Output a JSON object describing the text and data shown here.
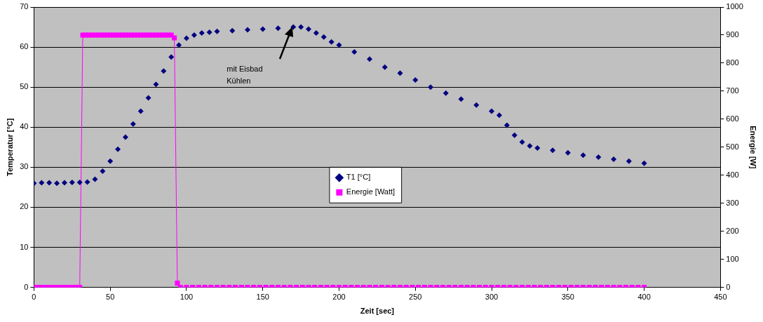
{
  "chart_data": {
    "type": "line",
    "xlabel": "Zeit [sec]",
    "ylabel": "Temperatur [°C]",
    "y2label": "Energie [W]",
    "xlim": [
      0,
      450
    ],
    "xticks": [
      0,
      50,
      100,
      150,
      200,
      250,
      300,
      350,
      400,
      450
    ],
    "ylim": [
      0,
      70
    ],
    "yticks": [
      0,
      10,
      20,
      30,
      40,
      50,
      60,
      70
    ],
    "y2lim": [
      0,
      1000
    ],
    "y2ticks": [
      0,
      100,
      200,
      300,
      400,
      500,
      600,
      700,
      800,
      900,
      1000
    ],
    "grid": "y",
    "legend": "center",
    "annotations": [
      "mit Eisbad\nKühlen"
    ],
    "series": [
      {
        "name": "T1 [°C]",
        "type": "scatter",
        "marker": "diamond",
        "color": "#000080",
        "x": [
          0,
          5,
          10,
          15,
          20,
          25,
          30,
          35,
          40,
          45,
          50,
          55,
          60,
          65,
          70,
          75,
          80,
          85,
          90,
          95,
          100,
          105,
          110,
          115,
          120,
          130,
          140,
          150,
          160,
          170,
          175,
          180,
          185,
          190,
          195,
          200,
          210,
          220,
          230,
          240,
          250,
          260,
          270,
          280,
          290,
          300,
          305,
          310,
          315,
          320,
          325,
          330,
          340,
          350,
          360,
          370,
          380,
          390,
          400
        ],
        "values": [
          26,
          26.1,
          26.1,
          26,
          26.1,
          26.2,
          26.2,
          26.3,
          27,
          29,
          31.5,
          34.5,
          37.5,
          40.8,
          44,
          47.3,
          50.7,
          54,
          57.5,
          60.5,
          62.2,
          63,
          63.5,
          63.7,
          63.9,
          64.1,
          64.3,
          64.5,
          64.7,
          65,
          65,
          64.5,
          63.5,
          62.5,
          61.3,
          60.5,
          58.8,
          57,
          55,
          53.5,
          51.8,
          50,
          48.5,
          47,
          45.5,
          44,
          43,
          40.5,
          38,
          36.3,
          35.3,
          34.8,
          34.2,
          33.6,
          33,
          32.5,
          32,
          31.5,
          31
        ]
      },
      {
        "name": "Energie [Watt]",
        "type": "line",
        "marker": "square",
        "axis": "y2",
        "color": "#ff00ff",
        "x": [
          0,
          2,
          4,
          6,
          8,
          10,
          12,
          14,
          16,
          18,
          20,
          22,
          24,
          26,
          28,
          30,
          32,
          34,
          36,
          38,
          40,
          42,
          44,
          46,
          48,
          50,
          52,
          54,
          56,
          58,
          60,
          62,
          64,
          66,
          68,
          70,
          72,
          74,
          76,
          78,
          80,
          82,
          84,
          86,
          88,
          90,
          92,
          94,
          96,
          100,
          104,
          108,
          112,
          116,
          120,
          124,
          128,
          132,
          136,
          140,
          144,
          148,
          152,
          156,
          160,
          164,
          168,
          172,
          176,
          180,
          184,
          188,
          192,
          196,
          200,
          204,
          208,
          212,
          216,
          220,
          224,
          228,
          232,
          236,
          240,
          244,
          248,
          252,
          256,
          260,
          264,
          268,
          272,
          276,
          280,
          284,
          288,
          292,
          296,
          300,
          304,
          308,
          312,
          316,
          320,
          324,
          328,
          332,
          336,
          340,
          344,
          348,
          352,
          356,
          360,
          364,
          368,
          372,
          376,
          380,
          384,
          388,
          392,
          396,
          400
        ],
        "values": [
          0,
          0,
          0,
          0,
          0,
          0,
          0,
          0,
          0,
          0,
          0,
          0,
          0,
          0,
          0,
          0,
          900,
          900,
          900,
          900,
          900,
          900,
          900,
          900,
          900,
          900,
          900,
          900,
          900,
          900,
          900,
          900,
          900,
          900,
          900,
          900,
          900,
          900,
          900,
          900,
          900,
          900,
          900,
          900,
          900,
          900,
          890,
          15,
          0,
          0,
          0,
          0,
          0,
          0,
          0,
          0,
          0,
          0,
          0,
          0,
          0,
          0,
          0,
          0,
          0,
          0,
          0,
          0,
          0,
          0,
          0,
          0,
          0,
          0,
          0,
          0,
          0,
          0,
          0,
          0,
          0,
          0,
          0,
          0,
          0,
          0,
          0,
          0,
          0,
          0,
          0,
          0,
          0,
          0,
          0,
          0,
          0,
          0,
          0,
          0,
          0,
          0,
          0,
          0,
          0,
          0,
          0,
          0,
          0,
          0,
          0,
          0,
          0,
          0,
          0,
          0,
          0,
          0,
          0,
          0,
          0,
          0,
          0,
          0,
          0
        ]
      }
    ]
  }
}
